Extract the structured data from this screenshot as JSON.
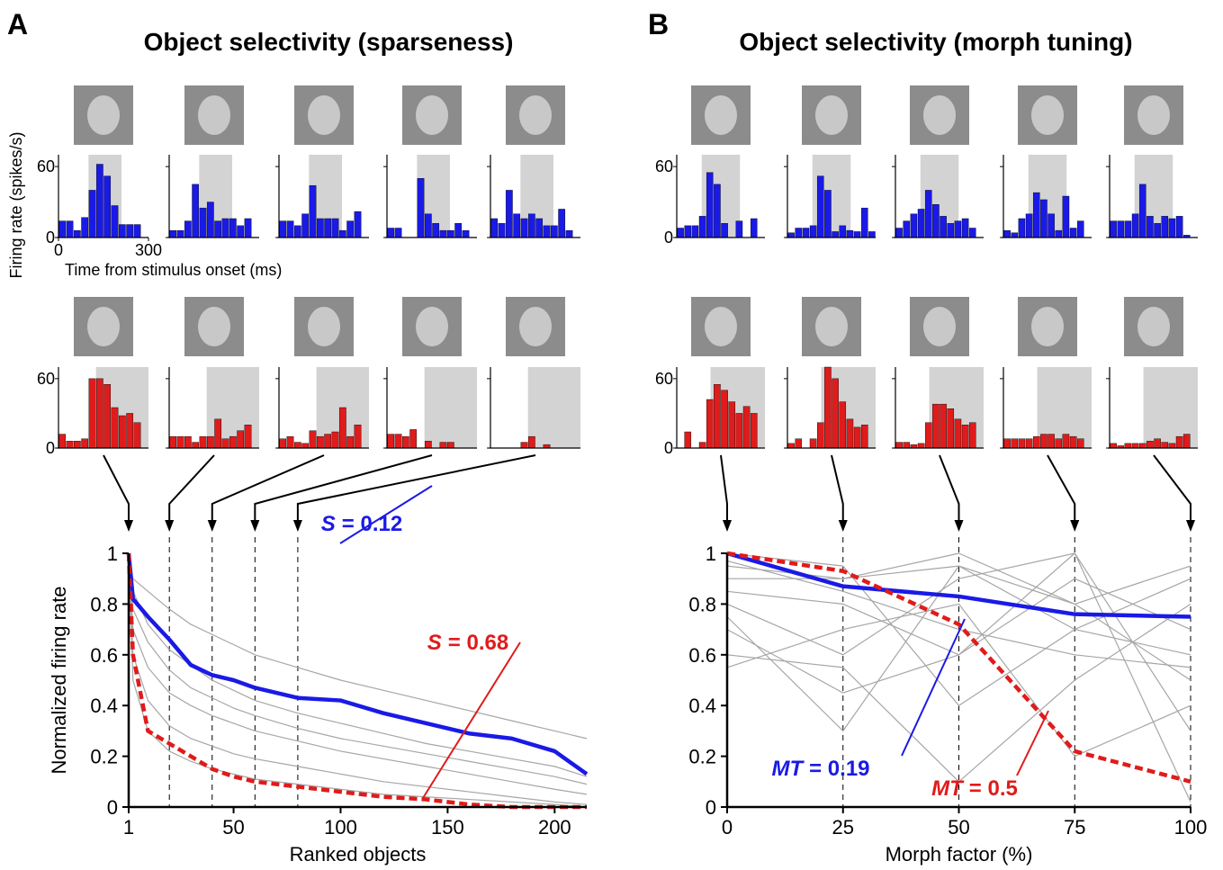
{
  "chart_data": [
    {
      "type": "histogram-grid",
      "letter": "A",
      "title": "Object selectivity (sparseness)",
      "xlim": [
        0,
        300
      ],
      "ylim": [
        0,
        70
      ],
      "yticks": [
        0,
        60
      ],
      "xticks": [
        0,
        300
      ],
      "xlabel": "Time from stimulus onset (ms)",
      "ylabel": "Firing rate (spikes/s)",
      "rows": [
        {
          "color": "#1a1ae6",
          "window": [
            100,
            210
          ],
          "histograms": [
            [
              14,
              14,
              6,
              17,
              40,
              62,
              52,
              27,
              11,
              11,
              11,
              0
            ],
            [
              6,
              6,
              14,
              45,
              25,
              30,
              14,
              16,
              16,
              10,
              16,
              0
            ],
            [
              14,
              14,
              10,
              20,
              44,
              16,
              16,
              16,
              6,
              14,
              22,
              0
            ],
            [
              8,
              8,
              0,
              0,
              50,
              20,
              12,
              6,
              6,
              12,
              6,
              0
            ],
            [
              16,
              12,
              40,
              20,
              16,
              20,
              16,
              10,
              10,
              24,
              6,
              0
            ]
          ]
        },
        {
          "color": "#e01b1b",
          "window": [
            125,
            300
          ],
          "histograms": [
            [
              12,
              6,
              6,
              8,
              60,
              60,
              55,
              35,
              28,
              30,
              22,
              0
            ],
            [
              10,
              10,
              10,
              5,
              10,
              10,
              25,
              8,
              10,
              15,
              20,
              0
            ],
            [
              8,
              10,
              5,
              4,
              15,
              10,
              12,
              14,
              35,
              10,
              20,
              0
            ],
            [
              12,
              12,
              10,
              16,
              0,
              6,
              0,
              5,
              5,
              0,
              0,
              0
            ],
            [
              0,
              0,
              0,
              0,
              5,
              10,
              0,
              3,
              0,
              0,
              0,
              0
            ]
          ]
        }
      ]
    },
    {
      "type": "line",
      "xlim": [
        1,
        215
      ],
      "ylim": [
        0,
        1
      ],
      "xticks": [
        1,
        50,
        100,
        150,
        200
      ],
      "yticks": [
        0,
        0.2,
        0.4,
        0.6,
        0.8,
        1
      ],
      "xlabel": "Ranked objects",
      "ylabel": "Normalized firing rate",
      "markers": [
        20,
        40,
        60,
        80
      ],
      "x": [
        1,
        3,
        10,
        20,
        30,
        40,
        50,
        60,
        80,
        100,
        120,
        140,
        160,
        180,
        200,
        215
      ],
      "series": [
        {
          "color": "#a6a6a6",
          "values": [
            1,
            0.9,
            0.85,
            0.78,
            0.72,
            0.68,
            0.64,
            0.6,
            0.55,
            0.5,
            0.46,
            0.42,
            0.38,
            0.34,
            0.3,
            0.27
          ]
        },
        {
          "color": "#a6a6a6",
          "values": [
            1,
            0.7,
            0.55,
            0.45,
            0.4,
            0.36,
            0.33,
            0.3,
            0.26,
            0.22,
            0.19,
            0.16,
            0.13,
            0.1,
            0.07,
            0.05
          ]
        },
        {
          "color": "#a6a6a6",
          "values": [
            1,
            0.6,
            0.42,
            0.32,
            0.27,
            0.24,
            0.21,
            0.19,
            0.16,
            0.13,
            0.1,
            0.08,
            0.06,
            0.04,
            0.02,
            0.01
          ]
        },
        {
          "color": "#a6a6a6",
          "values": [
            1,
            0.85,
            0.72,
            0.62,
            0.56,
            0.5,
            0.46,
            0.42,
            0.37,
            0.33,
            0.29,
            0.25,
            0.22,
            0.19,
            0.16,
            0.12
          ]
        },
        {
          "color": "#a6a6a6",
          "values": [
            1,
            0.5,
            0.3,
            0.22,
            0.18,
            0.15,
            0.13,
            0.11,
            0.09,
            0.07,
            0.05,
            0.04,
            0.03,
            0.02,
            0.01,
            0
          ]
        },
        {
          "color": "#a6a6a6",
          "values": [
            1,
            0.78,
            0.65,
            0.54,
            0.47,
            0.43,
            0.39,
            0.36,
            0.31,
            0.27,
            0.24,
            0.21,
            0.18,
            0.15,
            0.12,
            0.09
          ]
        },
        {
          "color": "#1a1ae6",
          "values": [
            1,
            0.82,
            0.75,
            0.66,
            0.56,
            0.52,
            0.5,
            0.47,
            0.43,
            0.42,
            0.37,
            0.33,
            0.29,
            0.27,
            0.22,
            0.13
          ],
          "label_symbol": "S",
          "label_text": "= 0.12"
        },
        {
          "color": "#e01b1b",
          "dashed": true,
          "values": [
            1,
            0.6,
            0.3,
            0.25,
            0.2,
            0.15,
            0.12,
            0.1,
            0.08,
            0.06,
            0.04,
            0.03,
            0.01,
            0,
            0,
            0
          ],
          "label_symbol": "S",
          "label_text": "= 0.68"
        }
      ]
    },
    {
      "type": "histogram-grid",
      "letter": "B",
      "title": "Object selectivity (morph tuning)",
      "xlim": [
        0,
        300
      ],
      "ylim": [
        0,
        70
      ],
      "yticks": [
        0,
        60
      ],
      "rows": [
        {
          "color": "#1a1ae6",
          "window": [
            85,
            215
          ],
          "histograms": [
            [
              8,
              10,
              10,
              18,
              55,
              45,
              12,
              0,
              14,
              0,
              16,
              0
            ],
            [
              4,
              8,
              8,
              10,
              52,
              40,
              5,
              10,
              6,
              5,
              25,
              5
            ],
            [
              8,
              14,
              20,
              24,
              40,
              28,
              18,
              12,
              14,
              16,
              8,
              0
            ],
            [
              6,
              4,
              16,
              20,
              38,
              32,
              20,
              6,
              35,
              8,
              14,
              0
            ],
            [
              14,
              14,
              14,
              20,
              45,
              18,
              12,
              18,
              16,
              18,
              2,
              0
            ]
          ]
        },
        {
          "color": "#e01b1b",
          "window": [
            115,
            300
          ],
          "histograms": [
            [
              0,
              14,
              0,
              5,
              42,
              55,
              50,
              40,
              30,
              36,
              30,
              0
            ],
            [
              4,
              8,
              0,
              8,
              22,
              70,
              60,
              40,
              25,
              18,
              20,
              0
            ],
            [
              5,
              5,
              3,
              4,
              22,
              38,
              38,
              34,
              25,
              20,
              22,
              0
            ],
            [
              8,
              8,
              8,
              8,
              10,
              12,
              12,
              8,
              12,
              10,
              8,
              0
            ],
            [
              4,
              2,
              4,
              4,
              4,
              6,
              8,
              5,
              4,
              10,
              12,
              0
            ]
          ]
        }
      ]
    },
    {
      "type": "line",
      "xlim": [
        0,
        100
      ],
      "ylim": [
        0,
        1
      ],
      "xticks": [
        0,
        25,
        50,
        75,
        100
      ],
      "yticks": [
        0,
        0.2,
        0.4,
        0.6,
        0.8,
        1
      ],
      "xlabel": "Morph factor (%)",
      "markers": [
        25,
        50,
        75,
        100
      ],
      "x": [
        0,
        25,
        50,
        75,
        100
      ],
      "series": [
        {
          "color": "#a6a6a6",
          "values": [
            0.95,
            0.9,
            0.95,
            0.7,
            0.6
          ]
        },
        {
          "color": "#a6a6a6",
          "values": [
            0.75,
            0.3,
            0.95,
            0.8,
            0.5
          ]
        },
        {
          "color": "#a6a6a6",
          "values": [
            0.85,
            0.8,
            0.6,
            1,
            0.3
          ]
        },
        {
          "color": "#a6a6a6",
          "values": [
            1,
            0.95,
            0.4,
            0.7,
            0.9
          ]
        },
        {
          "color": "#a6a6a6",
          "values": [
            0.6,
            0.55,
            0.1,
            0.5,
            0.8
          ]
        },
        {
          "color": "#a6a6a6",
          "values": [
            0.9,
            0.9,
            1,
            0.8,
            0.95
          ]
        },
        {
          "color": "#a6a6a6",
          "values": [
            0.55,
            0.7,
            0.8,
            0.2,
            0.4
          ]
        },
        {
          "color": "#a6a6a6",
          "values": [
            0.8,
            0.6,
            0.9,
            1,
            0.02
          ]
        },
        {
          "color": "#a6a6a6",
          "values": [
            0.97,
            0.85,
            0.7,
            0.6,
            0.55
          ]
        },
        {
          "color": "#a6a6a6",
          "values": [
            0.7,
            0.45,
            0.6,
            0.9,
            0.7
          ]
        },
        {
          "color": "#1a1ae6",
          "values": [
            1,
            0.87,
            0.83,
            0.76,
            0.75
          ],
          "label_symbol": "MT",
          "label_text": "= 0.19"
        },
        {
          "color": "#e01b1b",
          "dashed": true,
          "values": [
            1,
            0.93,
            0.72,
            0.22,
            0.1
          ],
          "label_symbol": "MT",
          "label_text": "= 0.5"
        }
      ]
    }
  ]
}
